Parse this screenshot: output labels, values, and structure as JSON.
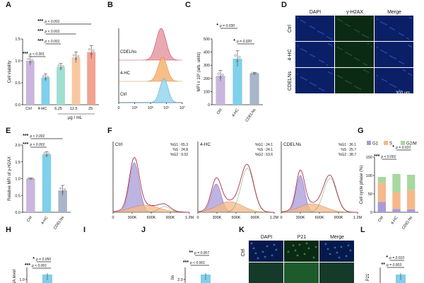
{
  "panel_labels": [
    "A",
    "B",
    "C",
    "D",
    "E",
    "F",
    "G",
    "H",
    "I",
    "J",
    "K",
    "L"
  ],
  "colors": {
    "ctrl": "#c9b6dd",
    "hc": "#7fd0ec",
    "c625": "#9ee0d0",
    "c125": "#f7c8a2",
    "c25": "#f2a392",
    "cdeln": "#a9b5c8",
    "g1": "#a99bd8",
    "s": "#f6b88a",
    "g2m": "#a8d8a0",
    "micro_bg": "#0a1f66",
    "micro_green": "#0b2a14"
  },
  "chart_data": [
    {
      "id": "A",
      "type": "bar",
      "ylabel": "Cell viability",
      "xlabel": "µg / mL",
      "categories": [
        "Ctrl",
        "4-HC",
        "6.25",
        "12.5",
        "25"
      ],
      "values": [
        1.0,
        0.62,
        0.86,
        1.08,
        1.2
      ],
      "errors": [
        0.1,
        0.08,
        0.08,
        0.12,
        0.15
      ],
      "ylim": [
        0,
        1.5
      ],
      "yticks": [
        "0.0",
        "0.5",
        "1.0",
        "1.5"
      ],
      "annotations": [
        {
          "stars": "***",
          "p": "p < 0.001"
        },
        {
          "stars": "***",
          "p": "p < 0.001"
        },
        {
          "stars": "***",
          "p": "p < 0.001"
        },
        {
          "stars": "***",
          "p": "p < 0.001"
        }
      ]
    },
    {
      "id": "B",
      "type": "histogram-overlay",
      "rows": [
        "CDELNs",
        "4-HC",
        "Ctrl"
      ],
      "xticks": [
        "0",
        "10³",
        "10⁵",
        "10⁵",
        "10⁷"
      ]
    },
    {
      "id": "C",
      "type": "bar",
      "ylabel": "MFI x 10³ (arb. units)",
      "categories": [
        "Ctrl",
        "4-HC",
        "CDELNs"
      ],
      "values": [
        220,
        350,
        238
      ],
      "errors": [
        40,
        60,
        8
      ],
      "ylim": [
        0,
        500
      ],
      "yticks": [
        "0",
        "100",
        "200",
        "300",
        "400",
        "500"
      ],
      "annotations": [
        {
          "stars": "*",
          "p": "p = 0.030"
        },
        {
          "stars": "*",
          "p": "p = 0.020"
        }
      ]
    },
    {
      "id": "D",
      "type": "image-grid",
      "columns": [
        "DAPI",
        "γ-H2AX",
        "Merge"
      ],
      "rows": [
        "Ctrl",
        "4-HC",
        "CDELNs"
      ],
      "scalebar": "300 µm"
    },
    {
      "id": "E",
      "type": "bar",
      "ylabel": "Relative MFI of γ-H2AX",
      "categories": [
        "Ctrl",
        "4-HC",
        "CDELNs"
      ],
      "values": [
        1.0,
        1.72,
        0.65
      ],
      "errors": [
        0.02,
        0.08,
        0.15
      ],
      "ylim": [
        0,
        2.0
      ],
      "yticks": [
        "0.0",
        "0.5",
        "1.0",
        "1.5",
        "2.0"
      ],
      "annotations": [
        {
          "stars": "***",
          "p": "p < 0.001"
        },
        {
          "stars": "***",
          "p": "p < 0.001"
        }
      ]
    },
    {
      "id": "F",
      "type": "cell-cycle",
      "xticks": [
        "0",
        "300K",
        "600K",
        "900K",
        "1.2M"
      ],
      "panels": [
        {
          "title": "Ctrl",
          "stats": [
            "%G1 : 65.3",
            "%S : 24.8",
            "%G2 : 9.02"
          ]
        },
        {
          "title": "4-HC",
          "stats": [
            "%G1 : 24.1",
            "%S : 24.1",
            "%G2 : 53.6"
          ]
        },
        {
          "title": "CDELNs",
          "stats": [
            "%G1 : 36.1",
            "%S : 25.7",
            "%G2 : 38.7"
          ]
        }
      ]
    },
    {
      "id": "G",
      "type": "stacked-bar",
      "ylabel": "Cell cycle phase (%)",
      "legend": [
        "G1",
        "S",
        "G2/M"
      ],
      "categories": [
        "Ctrl",
        "4-HC",
        "CDELNs"
      ],
      "series": [
        {
          "name": "G1",
          "values": [
            28,
            9,
            8
          ]
        },
        {
          "name": "S",
          "values": [
            52,
            45,
            52
          ]
        },
        {
          "name": "G2/M",
          "values": [
            16,
            50,
            42
          ]
        }
      ],
      "ylim": [
        0,
        150
      ],
      "yticks": [
        "0",
        "50",
        "100",
        "150"
      ],
      "annotations": [
        {
          "stars": "***",
          "p": "p < 0.001"
        },
        {
          "stars": "*",
          "p": "p = 0.010"
        }
      ]
    },
    {
      "id": "H",
      "type": "bar",
      "ylabel": "NA level",
      "yticks": [
        "1.0"
      ],
      "annotations": [
        {
          "stars": "*",
          "p": "p = 0.050"
        },
        {
          "stars": "***",
          "p": "p < 0.001"
        }
      ]
    },
    {
      "id": "J",
      "type": "bar",
      "ylabel": "lin",
      "yticks": [
        "2.0"
      ],
      "annotations": [
        {
          "stars": "**",
          "p": "p = 0.007"
        },
        {
          "stars": "***",
          "p": "p < 0.001"
        }
      ]
    },
    {
      "id": "K",
      "type": "image-grid",
      "columns": [
        "DAPI",
        "P21",
        "Merge"
      ],
      "rows": [
        "Ctrl"
      ]
    },
    {
      "id": "L",
      "type": "bar",
      "ylabel": "P21",
      "annotations": [
        {
          "stars": "*",
          "p": "p = 0.010"
        },
        {
          "stars": "**",
          "p": "p = 0.003"
        }
      ]
    }
  ]
}
